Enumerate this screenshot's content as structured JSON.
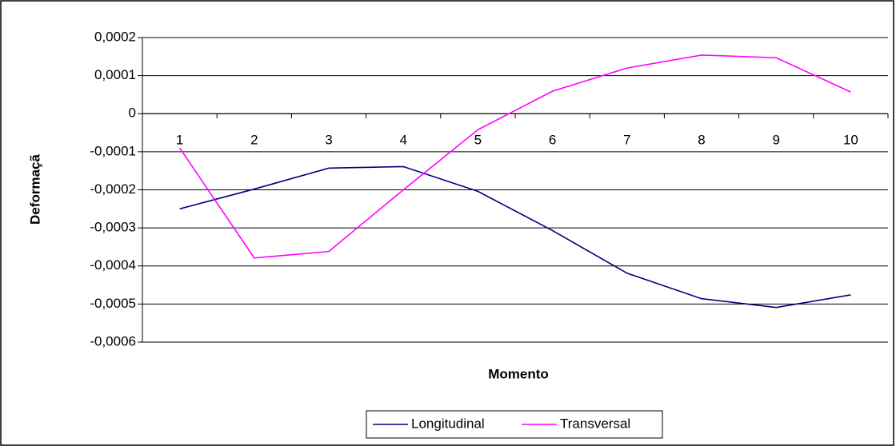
{
  "chart_data": {
    "type": "line",
    "categories": [
      "1",
      "2",
      "3",
      "4",
      "5",
      "6",
      "7",
      "8",
      "9",
      "10"
    ],
    "series": [
      {
        "name": "Longitudinal",
        "color": "#000080",
        "values": [
          -0.00025,
          -0.000198,
          -0.000143,
          -0.000139,
          -0.000204,
          -0.000307,
          -0.000419,
          -0.000486,
          -0.000509,
          -0.000476
        ]
      },
      {
        "name": "Transversal",
        "color": "#ff00ff",
        "values": [
          -9e-05,
          -0.000379,
          -0.000362,
          -0.0002,
          -4.2e-05,
          5.9e-05,
          0.00012,
          0.000154,
          0.000147,
          5.7e-05
        ]
      }
    ],
    "x_label": "Momento",
    "y_label": "Deformaçã",
    "ylim": [
      -0.0006,
      0.0002
    ],
    "yticks": [
      {
        "value": -0.0006,
        "label": "-0,0006"
      },
      {
        "value": -0.0005,
        "label": "-0,0005"
      },
      {
        "value": -0.0004,
        "label": "-0,0004"
      },
      {
        "value": -0.0003,
        "label": "-0,0003"
      },
      {
        "value": -0.0002,
        "label": "-0,0002"
      },
      {
        "value": -0.0001,
        "label": "-0,0001"
      },
      0,
      {
        "value": 0.0001,
        "label": "0,0001"
      },
      {
        "value": 0.0002,
        "label": "0,0002"
      }
    ],
    "grid": true,
    "legend": "bottom"
  }
}
